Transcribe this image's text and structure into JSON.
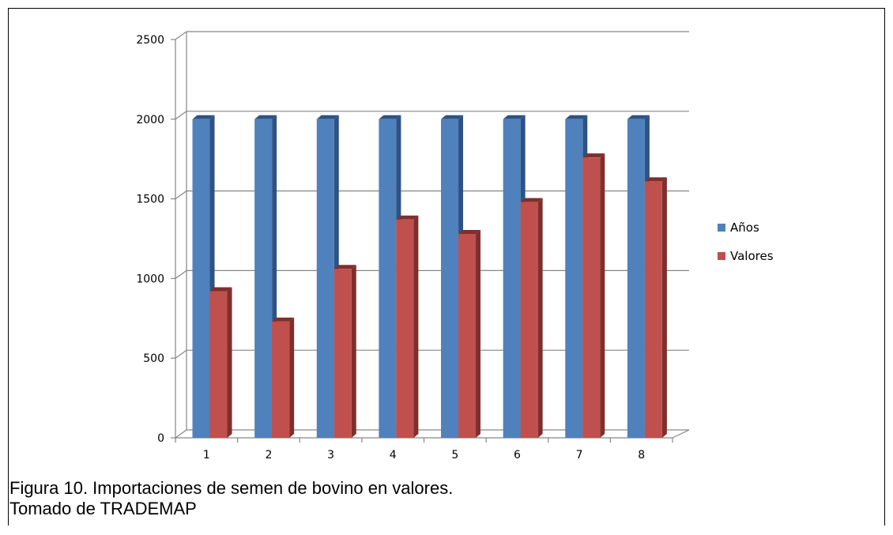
{
  "chart_data": {
    "type": "bar",
    "categories": [
      "1",
      "2",
      "3",
      "4",
      "5",
      "6",
      "7",
      "8"
    ],
    "series": [
      {
        "name": "Años",
        "values": [
          2000,
          2000,
          2000,
          2000,
          2000,
          2000,
          2000,
          2000
        ],
        "color": "#4F81BD",
        "dark": "#2E5283"
      },
      {
        "name": "Valores",
        "values": [
          920,
          730,
          1060,
          1370,
          1280,
          1480,
          1760,
          1610
        ],
        "color": "#C0504D",
        "dark": "#7E2F2C"
      }
    ],
    "yticks": [
      0,
      500,
      1000,
      1500,
      2000,
      2500
    ],
    "ylim": [
      0,
      2500
    ],
    "grid": true,
    "legend": "right",
    "style": "3d-clustered-column"
  },
  "caption": {
    "line1": "Figura 10.  Importaciones de semen de bovino en valores.",
    "line2": "Tomado de TRADEMAP"
  }
}
